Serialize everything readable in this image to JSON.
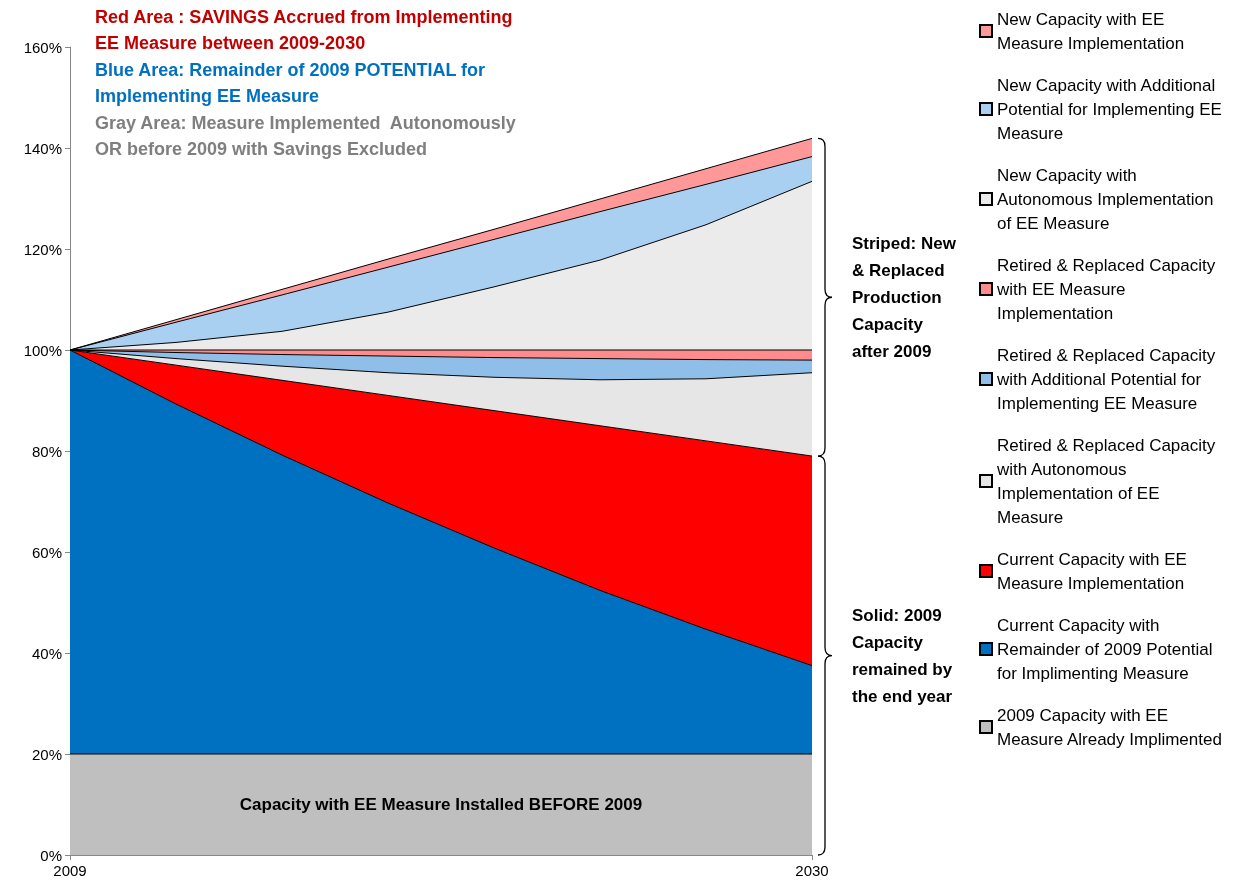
{
  "chart_data": {
    "type": "area",
    "stacked": true,
    "x": [
      2009,
      2012,
      2015,
      2018,
      2021,
      2024,
      2027,
      2030
    ],
    "xlim": [
      2009,
      2030
    ],
    "xticks": [
      2009,
      2030
    ],
    "ylim": [
      0,
      160
    ],
    "yticks": [
      {
        "value": 0,
        "label": "0%"
      },
      {
        "value": 20,
        "label": "20%"
      },
      {
        "value": 40,
        "label": "40%"
      },
      {
        "value": 60,
        "label": "60%"
      },
      {
        "value": 80,
        "label": "80%"
      },
      {
        "value": 100,
        "label": "100%"
      },
      {
        "value": 120,
        "label": "120%"
      },
      {
        "value": 140,
        "label": "140%"
      },
      {
        "value": 160,
        "label": "160%"
      }
    ],
    "grid": false,
    "legend": "right",
    "marker": "none",
    "series": [
      {
        "name": "2009 Capacity with EE Measure Already Implimented",
        "color": "#bfbfbf",
        "values": [
          20,
          20,
          20,
          20,
          20,
          20,
          20,
          20
        ]
      },
      {
        "name": "Current Capacity with Remainder of 2009 Potential for Implimenting Measure",
        "color": "#0070c0",
        "values": [
          80,
          69.3,
          59.2,
          49.7,
          40.8,
          32.4,
          24.7,
          17.5
        ]
      },
      {
        "name": "Current Capacity with EE Measure Implementation",
        "color": "#ff0000",
        "values": [
          0,
          7.7,
          14.8,
          21.3,
          27.2,
          32.6,
          37.3,
          41.5
        ]
      },
      {
        "name": "Retired & Replaced Capacity with Autonomous Implementation of EE Measure",
        "color": "#e6e6e6",
        "values": [
          0,
          1.3,
          2.8,
          4.5,
          6.6,
          9.1,
          12.3,
          16.5
        ]
      },
      {
        "name": "Retired & Replaced Capacity with Additional Potential for Implementing EE Measure",
        "color": "#8fbfe8",
        "values": [
          0,
          1.2,
          2.3,
          3.3,
          3.9,
          4.2,
          3.8,
          2.5
        ]
      },
      {
        "name": "Retired & Replaced Capacity with EE Measure Implementation",
        "color": "#ff8c8c",
        "values": [
          0,
          0.5,
          0.9,
          1.2,
          1.5,
          1.7,
          1.9,
          2.0
        ]
      },
      {
        "name": "New Capacity with Autonomous Implementation of EE Measure",
        "color": "#ebebeb",
        "values": [
          0,
          1.5,
          3.7,
          7.5,
          12.5,
          17.8,
          24.8,
          33.4
        ]
      },
      {
        "name": "New Capacity with Additional Potential for Implementing EE Measure",
        "color": "#a9d0f0",
        "values": [
          0,
          4.0,
          7.2,
          8.9,
          9.4,
          9.6,
          8.0,
          4.9
        ]
      },
      {
        "name": "New Capacity with EE Measure Implementation",
        "color": "#ff9999",
        "values": [
          0,
          0.5,
          1.1,
          1.6,
          2.0,
          2.5,
          3.1,
          3.6
        ]
      }
    ],
    "annotations": [
      "Red Area : SAVINGS Accrued from Implementing EE Measure between 2009-2030",
      "Blue Area: Remainder of 2009 POTENTIAL for Implementing EE Measure",
      "Gray Area: Measure Implemented  Autonomously OR before 2009 with Savings Excluded",
      "Capacity with EE Measure Installed BEFORE 2009",
      "Striped: New & Replaced Production Capacity after 2009",
      "Solid: 2009 Capacity remained by the end year"
    ]
  }
}
